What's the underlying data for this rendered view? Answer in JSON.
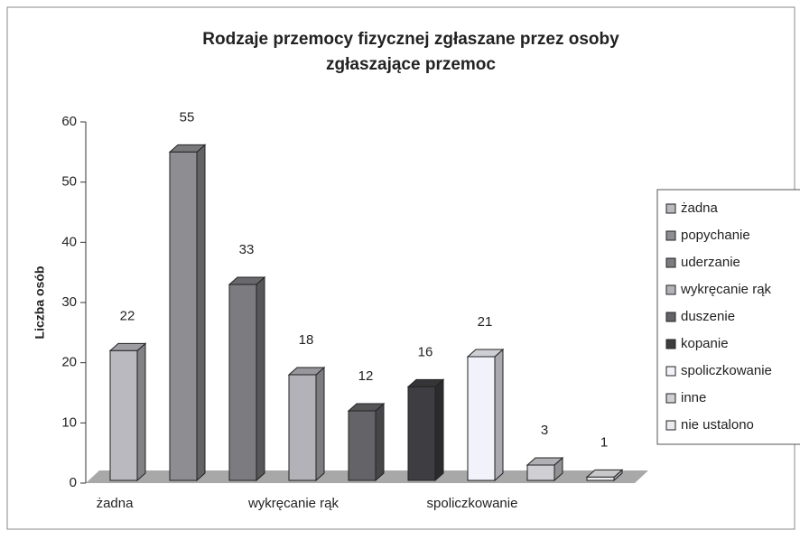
{
  "chart_data": {
    "type": "bar3d",
    "title": [
      "Rodzaje przemocy fizycznej zgłaszane przez osoby",
      "zgłaszające przemoc"
    ],
    "y_label": "Liczba osób",
    "categories": [
      "żadna",
      null,
      null,
      "wykręcanie rąk",
      null,
      null,
      "spoliczkowanie",
      null,
      null
    ],
    "legend": [
      "żadna",
      "popychanie",
      "uderzanie",
      "wykręcanie rąk",
      "duszenie",
      "kopanie",
      "spoliczkowanie",
      "inne",
      "nie ustalono"
    ],
    "values": [
      22,
      55,
      33,
      18,
      12,
      16,
      21,
      3,
      1
    ],
    "colors": [
      "#b9b9bf",
      "#8e8e92",
      "#7c7c80",
      "#b2b2b8",
      "#646468",
      "#3e3e42",
      "#f2f2fa",
      "#cfcfd4",
      "#ebebef"
    ],
    "ylim": [
      0,
      60
    ],
    "yticks": [
      0,
      10,
      20,
      30,
      40,
      50,
      60
    ]
  }
}
